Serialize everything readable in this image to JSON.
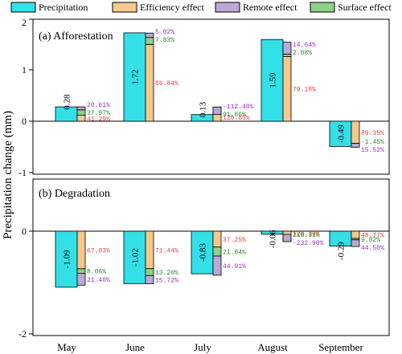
{
  "legend": {
    "items": [
      {
        "label": "Precipitation",
        "color": "#33e0e8"
      },
      {
        "label": "Efficiency effect",
        "color": "#f5c98d"
      },
      {
        "label": "Remote effect",
        "color": "#b9a9d6"
      },
      {
        "label": "Surface effect",
        "color": "#8fd18a"
      }
    ]
  },
  "colors": {
    "efficiency_text": "#e8403c",
    "remote_text": "#9a2bd0",
    "surface_text": "#2a8a2a",
    "axis": "#000000"
  },
  "chart_data": [
    {
      "type": "bar",
      "panel_title": "(a) Afforestation",
      "ylabel": "Precipitation change (mm)",
      "ylim": [
        -1,
        2
      ],
      "yticks": [
        "-1",
        "0",
        "1",
        "2"
      ],
      "categories": [
        "May",
        "June",
        "July",
        "August",
        "September"
      ],
      "precipitation": [
        0.28,
        1.72,
        0.13,
        1.59,
        -0.49
      ],
      "precipitation_labels": [
        "0.28",
        "1.72",
        "0.13",
        "1.59",
        "-0.49"
      ],
      "series": [
        {
          "name": "Efficiency effect",
          "percent_labels": [
            "41.29%",
            "86.84%",
            "120.65%",
            "79.18%",
            "89.35%"
          ]
        },
        {
          "name": "Remote effect",
          "percent_labels": [
            "20.61%",
            "5.02%",
            "-112.48%",
            "14.64%",
            "15.52%"
          ]
        },
        {
          "name": "Surface effect",
          "percent_labels": [
            "37.97%",
            "7.83%",
            "91.86%",
            "2.88%",
            "-1.45%"
          ]
        }
      ],
      "efficiency_values": [
        0.116,
        1.494,
        0.157,
        1.259,
        -0.438
      ],
      "remote_values": [
        0.058,
        0.086,
        -0.146,
        0.233,
        -0.076
      ],
      "surface_values": [
        0.106,
        0.135,
        0.119,
        0.046,
        0.007
      ]
    },
    {
      "type": "bar",
      "panel_title": "(b) Degradation",
      "ylim": [
        -2,
        0.5
      ],
      "yticks": [
        "-2",
        "0"
      ],
      "categories": [
        "May",
        "June",
        "July",
        "August",
        "September"
      ],
      "precipitation": [
        -1.09,
        -1.02,
        -0.83,
        -0.06,
        -0.29
      ],
      "precipitation_labels": [
        "-1.09",
        "-1.02",
        "-0.83",
        "-0.06",
        "-0.29"
      ],
      "series": [
        {
          "name": "Efficiency effect",
          "percent_labels": [
            "67.03%",
            "71.44%",
            "37.25%",
            "120.39%",
            "48.77%"
          ]
        },
        {
          "name": "Remote effect",
          "percent_labels": [
            "21.40%",
            "15.72%",
            "44.91%",
            "-232.90%",
            "44.50%"
          ]
        },
        {
          "name": "Surface effect",
          "percent_labels": [
            "8.06%",
            "13.20%",
            "21.04%",
            "216.31%",
            "9.82%"
          ]
        }
      ],
      "efficiency_values": [
        -0.731,
        -0.729,
        -0.309,
        -0.072,
        -0.141
      ],
      "remote_values": [
        -0.233,
        -0.16,
        -0.373,
        0.14,
        -0.129
      ],
      "surface_values": [
        -0.088,
        -0.135,
        -0.175,
        -0.13,
        -0.028
      ]
    }
  ]
}
